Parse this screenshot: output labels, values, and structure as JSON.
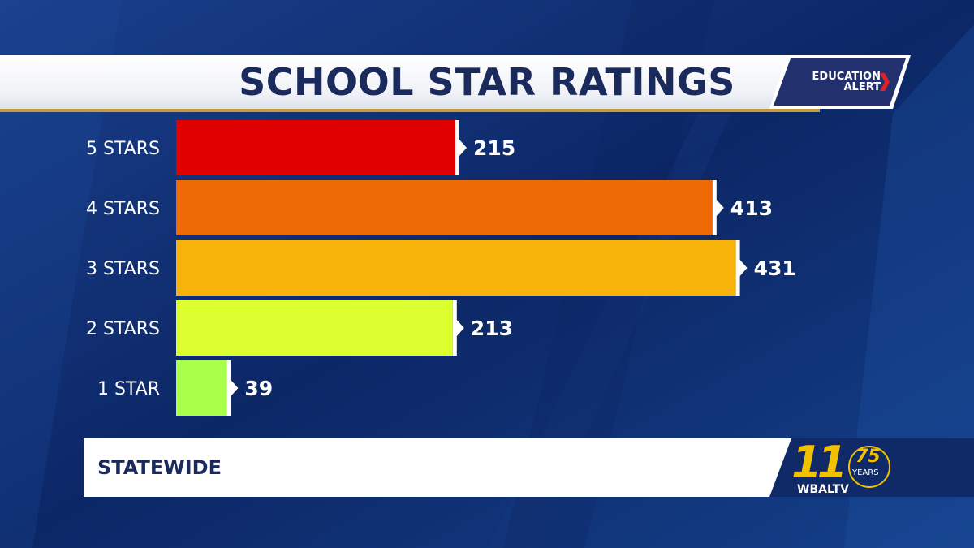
{
  "header": {
    "title": "SCHOOL STAR RATINGS",
    "badge_line1": "EDUCATION",
    "badge_line2": "ALERT"
  },
  "footer": {
    "label": "STATEWIDE"
  },
  "logo": {
    "channel": "11",
    "anniversary": "75",
    "years_word": "YEARS",
    "station": "WBALTV"
  },
  "colors": {
    "background": "#0d2a6b",
    "title": "#1a2a5c",
    "accent": "#c99a3a"
  },
  "chart_data": {
    "type": "bar",
    "orientation": "horizontal",
    "categories": [
      "5 STARS",
      "4 STARS",
      "3 STARS",
      "2 STARS",
      "1 STAR"
    ],
    "values": [
      215,
      413,
      431,
      213,
      39
    ],
    "bar_colors": [
      "#e00000",
      "#ee6a06",
      "#f7b309",
      "#ddff30",
      "#aaff4a"
    ],
    "grid": false,
    "legend": "none"
  }
}
